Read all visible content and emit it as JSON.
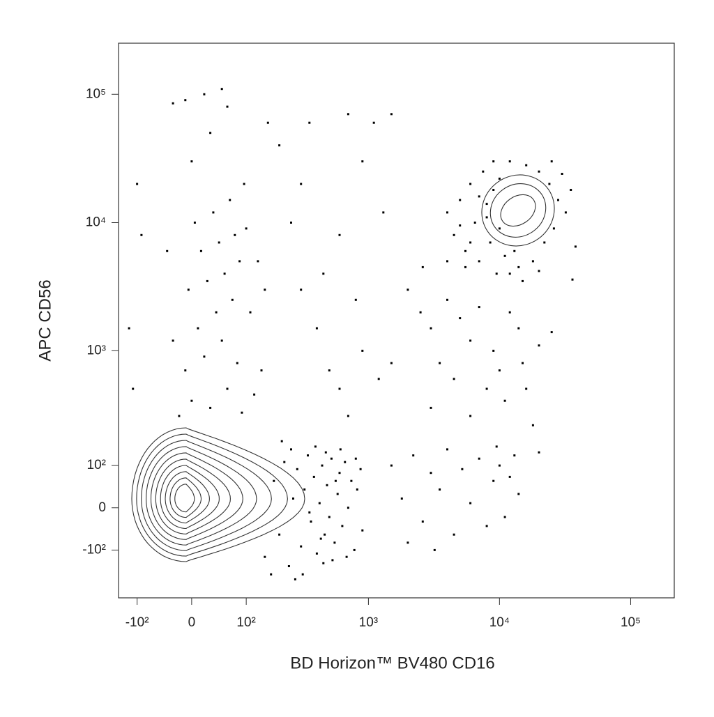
{
  "chart_data": {
    "type": "scatter",
    "xlabel": "BD Horizon™ BV480  CD16",
    "ylabel": "APC CD56",
    "xscale": "biexponential",
    "yscale": "biexponential",
    "xlim": [
      -150,
      215000
    ],
    "ylim": [
      -290,
      250000
    ],
    "xticks": [
      {
        "value": -100,
        "label": "-10²"
      },
      0,
      {
        "value": 100,
        "label": "10²"
      },
      {
        "value": 1000,
        "label": "10³"
      },
      {
        "value": 10000,
        "label": "10⁴"
      },
      {
        "value": 100000,
        "label": "10⁵"
      }
    ],
    "yticks": [
      {
        "value": -100,
        "label": "-10²"
      },
      0,
      {
        "value": 100,
        "label": "10²"
      },
      {
        "value": 1000,
        "label": "10³"
      },
      {
        "value": 10000,
        "label": "10⁴"
      },
      {
        "value": 100000,
        "label": "10⁵"
      }
    ],
    "color": "#000000",
    "x": [
      150,
      180,
      200,
      220,
      240,
      260,
      280,
      300,
      320,
      340,
      360,
      380,
      400,
      420,
      440,
      460,
      480,
      500,
      520,
      550,
      580,
      600,
      630,
      660,
      700,
      740,
      780,
      820,
      870,
      900,
      250,
      310,
      390,
      450,
      530,
      610,
      170,
      210,
      270,
      350,
      430,
      470,
      560,
      680,
      800,
      1500,
      1800,
      2200,
      2600,
      3000,
      3500,
      4000,
      4500,
      5200,
      6000,
      7000,
      8000,
      9000,
      10000,
      11000,
      12000,
      13000,
      14000,
      20000,
      2000,
      3200,
      9500,
      4000,
      4500,
      5000,
      5500,
      6000,
      6500,
      7000,
      7500,
      8000,
      8500,
      9000,
      9500,
      10000,
      11000,
      12000,
      13000,
      14000,
      16000,
      18000,
      20000,
      22000,
      24000,
      26000,
      28000,
      30000,
      32000,
      35000,
      38000,
      5000,
      7000,
      8000,
      9000,
      6000,
      10000,
      15000,
      25000,
      36000,
      5500,
      12000,
      20000,
      2000,
      2500,
      3000,
      3500,
      4000,
      4500,
      5000,
      6000,
      7000,
      8000,
      9000,
      10000,
      12000,
      14000,
      16000,
      20000,
      25000,
      3000,
      6000,
      11000,
      18000,
      15000,
      2600,
      4000,
      -20,
      0,
      30,
      60,
      90,
      120,
      -10,
      20,
      50,
      80,
      10,
      40,
      70,
      -5,
      25,
      55,
      85,
      15,
      45,
      75,
      5,
      35,
      65,
      95,
      0,
      30,
      60,
      -10,
      20,
      50,
      -30,
      100,
      130,
      150,
      110,
      140,
      -30,
      -40,
      160,
      200,
      250,
      300,
      400,
      500,
      600,
      700,
      900,
      1200,
      1500,
      350,
      700,
      1100,
      1500,
      300,
      600,
      900,
      450,
      800,
      1300,
      -100,
      -110,
      -90,
      -120
    ],
    "values": [
      -120,
      60,
      -60,
      110,
      -150,
      20,
      90,
      -90,
      40,
      130,
      -30,
      70,
      -110,
      10,
      100,
      -60,
      50,
      -20,
      120,
      -80,
      30,
      80,
      -40,
      110,
      0,
      60,
      -100,
      40,
      90,
      -50,
      150,
      -180,
      160,
      -140,
      -130,
      150,
      -180,
      180,
      -200,
      -10,
      -70,
      140,
      60,
      -120,
      120,
      100,
      20,
      130,
      -30,
      80,
      40,
      150,
      -60,
      90,
      10,
      120,
      -40,
      60,
      100,
      -20,
      70,
      130,
      30,
      140,
      -80,
      -100,
      160,
      12000,
      8000,
      15000,
      6000,
      20000,
      10000,
      5000,
      25000,
      14000,
      7000,
      30000,
      4000,
      9000,
      5500,
      30000,
      6000,
      4500,
      28000,
      5000,
      25000,
      7000,
      20000,
      9000,
      15000,
      24000,
      12000,
      18000,
      6500,
      9500,
      16000,
      11000,
      18000,
      7000,
      22000,
      3500,
      30000,
      3600,
      4500,
      4000,
      4200,
      3000,
      2000,
      1500,
      800,
      2500,
      600,
      1800,
      1200,
      2200,
      500,
      1000,
      700,
      2000,
      1500,
      500,
      1100,
      1400,
      350,
      300,
      400,
      250,
      800,
      4500,
      5000,
      300,
      400,
      350,
      500,
      320,
      450,
      700,
      900,
      1200,
      800,
      1500,
      2000,
      2500,
      3000,
      3500,
      4000,
      5000,
      6000,
      7000,
      8000,
      10000,
      12000,
      15000,
      20000,
      30000,
      50000,
      80000,
      90000,
      100000,
      110000,
      85000,
      9000,
      5000,
      3000,
      2000,
      700,
      1200,
      6000,
      60000,
      40000,
      10000,
      3000,
      1500,
      700,
      500,
      300,
      1000,
      600,
      800,
      60000,
      70000,
      60000,
      70000,
      20000,
      8000,
      30000,
      4000,
      2500,
      12000,
      20000,
      500,
      8000,
      1500
    ]
  }
}
